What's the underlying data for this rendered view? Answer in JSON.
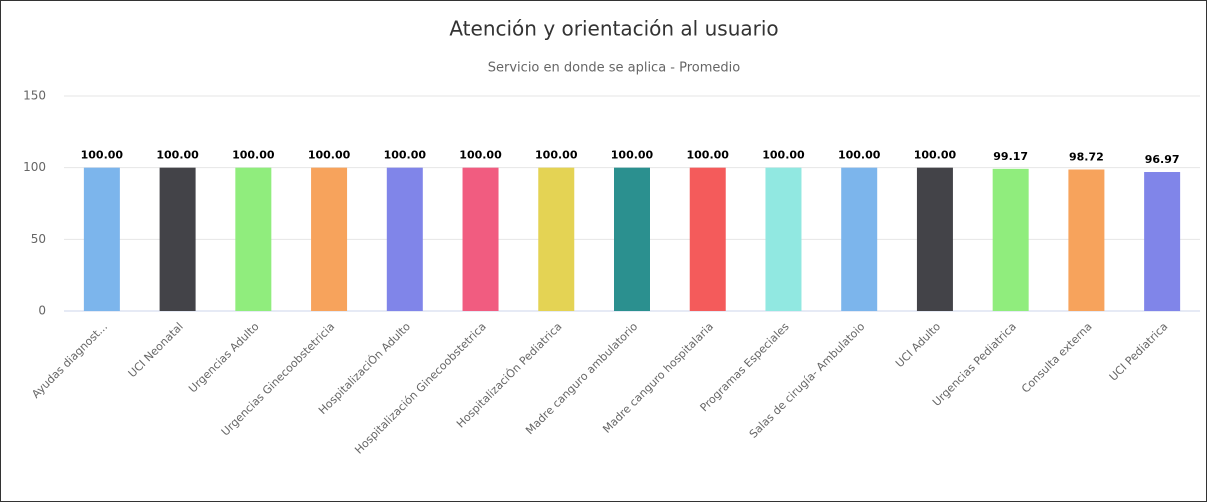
{
  "chart_data": {
    "type": "bar",
    "title": "Atención y orientación al usuario",
    "subtitle": "Servicio en donde se aplica - Promedio",
    "categories": [
      "Ayudas diagnost...",
      "UCI Neonatal",
      "Urgencias Adulto",
      "Urgencias Ginecoobstetricia",
      "HospitalizaciÓn Adulto",
      "Hospitalización Ginecoobstetrica",
      "HospitalizaciÓn Pediatrica",
      "Madre canguro ambulatorio",
      "Madre canguro hospitalaria",
      "Programas Especiales",
      "Salas de cirugía- Ambulatoio",
      "UCI Adulto",
      "Urgencias Pediatrica",
      "Consulta externa",
      "UCI Pediatrica"
    ],
    "values": [
      100,
      100,
      100,
      100,
      100,
      100,
      100,
      100,
      100,
      100,
      100,
      100,
      99.17,
      98.72,
      96.97
    ],
    "value_labels": [
      "100.00",
      "100.00",
      "100.00",
      "100.00",
      "100.00",
      "100.00",
      "100.00",
      "100.00",
      "100.00",
      "100.00",
      "100.00",
      "100.00",
      "99.17",
      "98.72",
      "96.97"
    ],
    "colors": [
      "#7cb5ec",
      "#434348",
      "#90ed7d",
      "#f7a35c",
      "#8085e9",
      "#f15c80",
      "#e4d354",
      "#2b908f",
      "#f45b5b",
      "#91e8e1",
      "#7cb5ec",
      "#434348",
      "#90ed7d",
      "#f7a35c",
      "#8085e9"
    ],
    "ylim": [
      0,
      150
    ],
    "yticks": [
      0,
      50,
      100,
      150
    ],
    "grid": true
  }
}
